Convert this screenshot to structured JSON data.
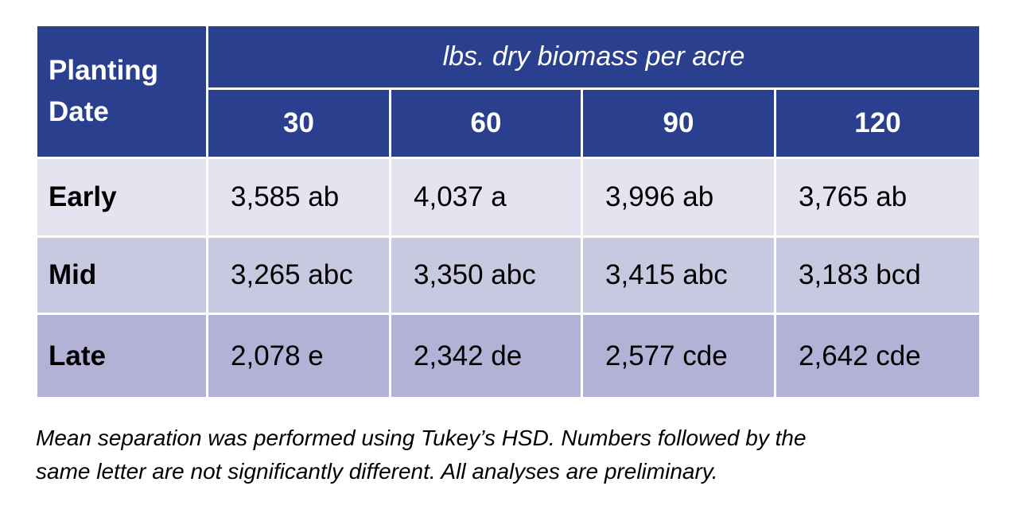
{
  "table": {
    "row_header": "Planting Date",
    "group_header": "lbs. dry biomass per acre",
    "columns": [
      "30",
      "60",
      "90",
      "120"
    ],
    "rows": [
      {
        "label": "Early",
        "cells": [
          "3,585 ab",
          "4,037 a",
          "3,996 ab",
          "3,765 ab"
        ]
      },
      {
        "label": "Mid",
        "cells": [
          "3,265 abc",
          "3,350 abc",
          "3,415 abc",
          "3,183 bcd"
        ]
      },
      {
        "label": "Late",
        "cells": [
          "2,078 e",
          "2,342 de",
          "2,577 cde",
          "2,642 cde"
        ]
      }
    ]
  },
  "footnote": [
    "Mean separation was performed using Tukey’s HSD. Numbers followed by the",
    "same letter are not significantly different. All analyses are preliminary."
  ]
}
